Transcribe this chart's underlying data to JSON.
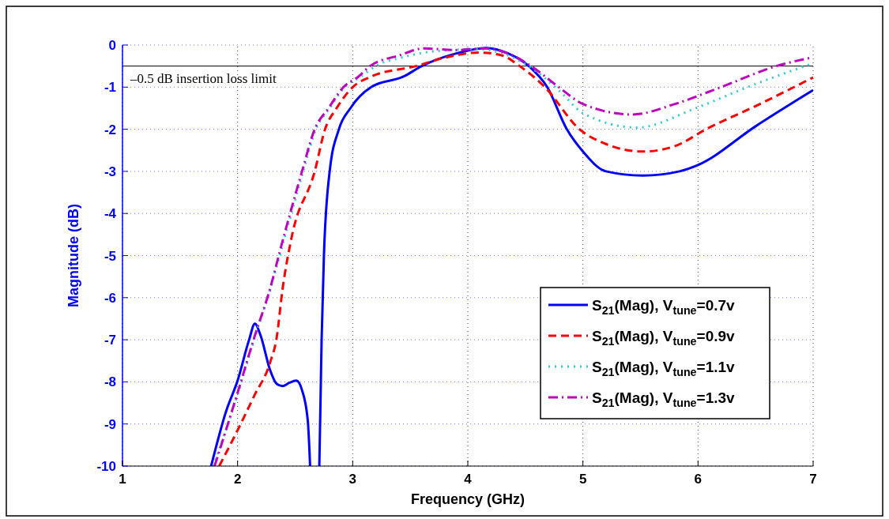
{
  "chart_data": {
    "type": "line",
    "xlabel": "Frequency (GHz)",
    "ylabel": "Magnitude (dB)",
    "xlim": [
      1,
      7
    ],
    "ylim": [
      -10,
      0
    ],
    "xticks": [
      1,
      2,
      3,
      4,
      5,
      6,
      7
    ],
    "yticks": [
      -10,
      -9,
      -8,
      -7,
      -6,
      -5,
      -4,
      -3,
      -2,
      -1,
      0
    ],
    "grid": true,
    "legend": "bottom right",
    "ref_lines": [
      {
        "axis": "y",
        "value": -0.5,
        "label": "–0.5 dB insertion loss limit",
        "color": "#000000"
      }
    ],
    "series": [
      {
        "name": "S$_{21}$(Mag), V$_{tune}$=0.7v",
        "color": "#0000ff",
        "line_style": "solid",
        "x": [
          1.77,
          1.9,
          2.0,
          2.1,
          2.15,
          2.2,
          2.28,
          2.34,
          2.39,
          2.45,
          2.51,
          2.56,
          2.61,
          2.63,
          2.67,
          2.71,
          2.73,
          2.75,
          2.8,
          2.88,
          2.98,
          3.16,
          3.44,
          3.6,
          3.9,
          4.16,
          4.35,
          4.53,
          4.69,
          4.86,
          5.0,
          5.2,
          5.52,
          5.84,
          6.0,
          6.5,
          7
        ],
        "values": [
          -10,
          -8.7,
          -7.97,
          -7.0,
          -6.62,
          -6.9,
          -7.7,
          -8.05,
          -8.1,
          -8.02,
          -7.97,
          -8.2,
          -8.93,
          -10,
          null,
          -10,
          -7,
          -5,
          -3,
          -2,
          -1.5,
          -1,
          -0.75,
          -0.5,
          -0.2,
          -0.07,
          -0.2,
          -0.5,
          -1,
          -2,
          -2.53,
          -3,
          -3.1,
          -3,
          -2.85,
          -1.93,
          -1.07
        ]
      },
      {
        "name": "S$_{21}$(Mag), V$_{tune}$=0.9v",
        "color": "#ff0000",
        "line_style": "dashed",
        "x": [
          1.84,
          2.0,
          2.15,
          2.28,
          2.34,
          2.39,
          2.47,
          2.67,
          2.76,
          2.86,
          3.0,
          3.16,
          3.55,
          3.8,
          4.1,
          4.3,
          4.45,
          4.67,
          4.97,
          5.2,
          5.52,
          5.8,
          6.07,
          6.5,
          7
        ],
        "values": [
          -10,
          -9.15,
          -8.3,
          -7.56,
          -6.94,
          -5.81,
          -4.56,
          -3,
          -2,
          -1.5,
          -1,
          -0.75,
          -0.5,
          -0.3,
          -0.18,
          -0.25,
          -0.5,
          -1,
          -2,
          -2.35,
          -2.53,
          -2.4,
          -2,
          -1.45,
          -0.77
        ]
      },
      {
        "name": "S$_{21}$(Mag), V$_{tune}$=1.1v",
        "color": "#33cccc",
        "line_style": "dotted",
        "x": [
          1.79,
          2.0,
          2.15,
          2.27,
          2.41,
          2.57,
          2.68,
          2.8,
          2.93,
          3.07,
          3.2,
          3.45,
          3.7,
          4.1,
          4.3,
          4.53,
          4.8,
          5.0,
          5.47,
          5.98,
          6.43,
          7
        ],
        "values": [
          -10,
          -8.3,
          -6.94,
          -5.93,
          -4.56,
          -3,
          -2,
          -1.5,
          -1,
          -0.75,
          -0.5,
          -0.28,
          -0.15,
          -0.1,
          -0.2,
          -0.5,
          -1.1,
          -1.62,
          -1.96,
          -1.5,
          -1,
          -0.43
        ]
      },
      {
        "name": "S$_{21}$(Mag), V$_{tune}$=1.3v",
        "color": "#bf00bf",
        "line_style": "dashdot",
        "x": [
          1.8,
          2.0,
          2.15,
          2.27,
          2.4,
          2.56,
          2.67,
          2.79,
          2.92,
          3.05,
          3.15,
          3.4,
          3.62,
          3.9,
          4.15,
          4.35,
          4.55,
          4.79,
          5.0,
          5.43,
          5.8,
          6.2,
          6.68,
          7
        ],
        "values": [
          -10,
          -8.26,
          -6.9,
          -5.9,
          -4.56,
          -3,
          -2,
          -1.5,
          -1,
          -0.75,
          -0.5,
          -0.25,
          -0.08,
          -0.12,
          -0.08,
          -0.2,
          -0.5,
          -1,
          -1.4,
          -1.65,
          -1.4,
          -1,
          -0.5,
          -0.29
        ]
      }
    ]
  }
}
